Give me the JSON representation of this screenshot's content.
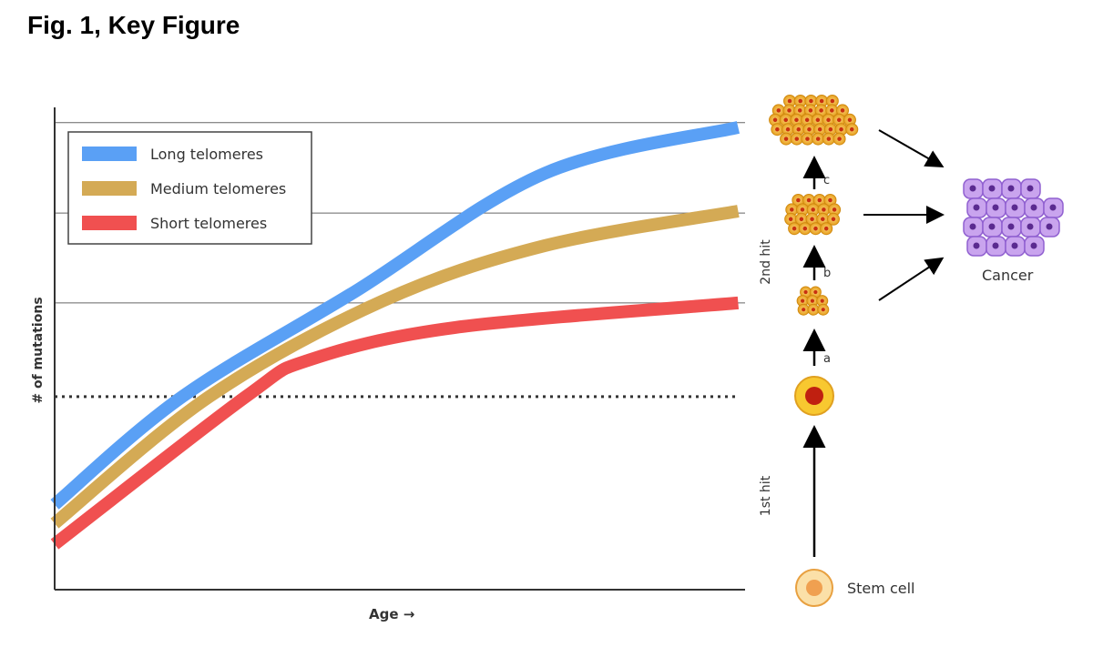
{
  "figure_title": "Fig. 1, Key Figure",
  "chart_data": {
    "type": "line",
    "xlabel": "Age →",
    "ylabel": "# of mutations",
    "xlim": [
      0,
      100
    ],
    "ylim": [
      0,
      100
    ],
    "grid": false,
    "legend_placement": "top-left",
    "reference_lines": {
      "solid": [
        98.7,
        79.6,
        60.6
      ],
      "dotted": [
        40.8
      ]
    },
    "series": [
      {
        "name": "Long telomeres",
        "color": "#5aa0f5",
        "x": [
          0,
          18.5,
          43.5,
          71,
          99
        ],
        "y": [
          18,
          40.8,
          63,
          88,
          97.7
        ]
      },
      {
        "name": "Medium telomeres",
        "color": "#d4aa55",
        "x": [
          0,
          22.4,
          47.5,
          71,
          99
        ],
        "y": [
          14,
          40.8,
          61,
          72.7,
          80
        ]
      },
      {
        "name": "Short telomeres",
        "color": "#f05050",
        "x": [
          0,
          27.7,
          37,
          58,
          99
        ],
        "y": [
          9.6,
          40.8,
          48.6,
          55.4,
          60.6
        ]
      }
    ]
  },
  "pathway": {
    "stem_cell": "Stem cell",
    "first_hit": "1st hit",
    "second_hit": "2nd hit",
    "step_a": "a",
    "step_b": "b",
    "step_c": "c",
    "cancer": "Cancer",
    "cell_color": "#f0b030",
    "cancer_color": "#b78be0"
  }
}
